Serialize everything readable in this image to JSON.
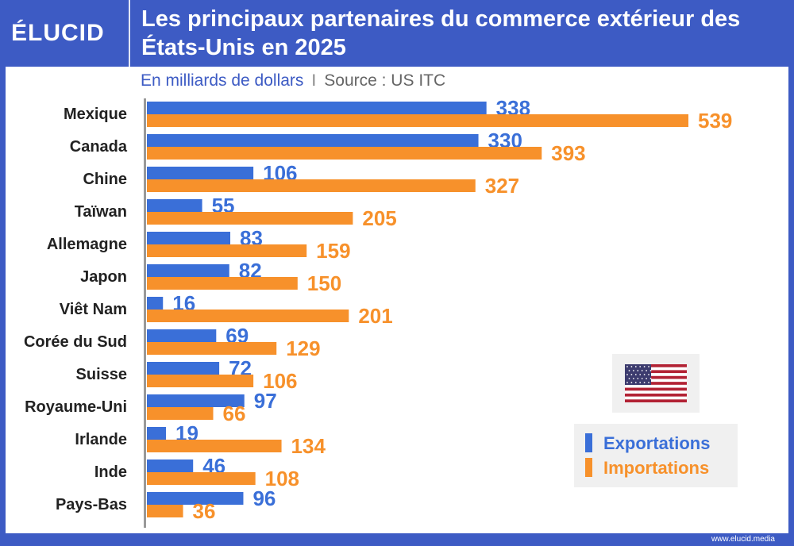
{
  "brand": {
    "logo_text": "ÉLUCID",
    "footer_url": "www.elucid.media"
  },
  "colors": {
    "export": "#3a6fd8",
    "import": "#f7912b",
    "axis": "#999999",
    "label": "#222222"
  },
  "chart_data": {
    "type": "bar",
    "orientation": "horizontal",
    "title": "Les principaux partenaires du commerce extérieur des États-Unis en 2025",
    "subtitle_unit": "En milliards de dollars",
    "subtitle_separator": "I",
    "subtitle_source": "Source : US ITC",
    "categories": [
      "Mexique",
      "Canada",
      "Chine",
      "Taïwan",
      "Allemagne",
      "Japon",
      "Viêt Nam",
      "Corée du Sud",
      "Suisse",
      "Royaume-Uni",
      "Irlande",
      "Inde",
      "Pays-Bas"
    ],
    "series": [
      {
        "name": "Exportations",
        "values": [
          338,
          330,
          106,
          55,
          83,
          82,
          16,
          69,
          72,
          97,
          19,
          46,
          96
        ]
      },
      {
        "name": "Importations",
        "values": [
          539,
          393,
          327,
          205,
          159,
          150,
          201,
          129,
          106,
          66,
          134,
          108,
          36
        ]
      }
    ],
    "xlim": [
      0,
      539
    ],
    "grid": false,
    "legend": "bottom-right"
  },
  "flag": {
    "icon": "us-flag-icon"
  }
}
